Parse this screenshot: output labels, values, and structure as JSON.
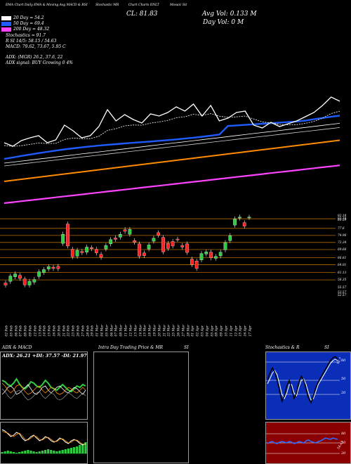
{
  "header": {
    "top_line": [
      "EMA Chart Daily",
      "EMA & Moving Avg",
      "MACD & RSI",
      "Stochastic",
      "MR",
      "Chart",
      "Charts ENLT",
      "Mosaic",
      "Sit"
    ],
    "left_stats": [
      "20  Day = 54.2",
      "50  Day = 69.4",
      "200  Day = 48.32",
      "Stochastics = 91.7",
      "R          SI 14/5: 58.15 / 54.63",
      "MACD: 79.62, 73.67, 5.95 C",
      "ADX:                    (MGR) 26.2,  37.6,   22",
      "ADX  signal:                         BUY Growing 0 4%"
    ],
    "cl_label": "CL: 81.83",
    "avg_vol": "Avg Vol: 0.133  M",
    "day_vol": "Day Vol: 0   M",
    "colors": {
      "ema20": "#ffffff",
      "ema50": "#1e5cff",
      "ema100": "#ffffff",
      "ema200": "#ff8c00",
      "ema_long": "#ff44ff"
    }
  },
  "price_axis": [
    "82.18",
    "81.18",
    "80.59",
    "77.6",
    "74.96",
    "72.34",
    "69.66",
    "66.61",
    "64.01",
    "61.13",
    "58.35",
    "55.57",
    "53.57",
    "52.57"
  ],
  "date_axis": [
    "02 Feb",
    "05 Feb",
    "06 Feb",
    "07 Feb",
    "08 Feb",
    "09 Feb",
    "12 Feb",
    "13 Feb",
    "14 Feb",
    "15 Feb",
    "16 Feb",
    "20 Feb",
    "21 Feb",
    "22 Feb",
    "23 Feb",
    "26 Feb",
    "27 Feb",
    "28 Feb",
    "29 Feb",
    "01 Mar",
    "04 Mar",
    "05 Mar",
    "06 Mar",
    "07 Mar",
    "08 Mar",
    "11 Mar",
    "12 Mar",
    "13 Mar",
    "14 Mar",
    "15 Mar",
    "18 Mar",
    "19 Mar",
    "20 Mar",
    "21 Mar",
    "22 Mar",
    "25 Mar",
    "26 Mar",
    "27 Mar",
    "28 Mar",
    "01 Apr",
    "02 Apr",
    "03 Apr",
    "04 Apr",
    "05 Apr",
    "08 Apr",
    "09 Apr",
    "10 Apr",
    "11 Apr",
    "12 Apr",
    "15 Apr",
    "16 Apr",
    "17 Apr"
  ],
  "panels": {
    "adx_title": "ADX  & MACD",
    "intra_title": "Intra Day Trading Price  & MR",
    "intra_si": "SI",
    "stoch_title": "Stochastics & R",
    "stoch_si": "SI",
    "adx_readout": "ADX: 26.21  +DI: 37.57  -DI: 21.97",
    "stoch_levels": [
      "80",
      "50",
      "20"
    ],
    "rsi_levels": [
      "80",
      "50",
      "20"
    ],
    "stoch_value": "91.7",
    "rsi_value": "54.63"
  },
  "chart_data": {
    "type": "line",
    "x": [
      "02 Feb",
      "05 Feb",
      "06 Feb",
      "07 Feb",
      "08 Feb",
      "09 Feb",
      "12 Feb",
      "13 Feb",
      "14 Feb",
      "15 Feb",
      "16 Feb",
      "20 Feb",
      "21 Feb",
      "22 Feb",
      "23 Feb",
      "26 Feb",
      "27 Feb",
      "28 Feb",
      "29 Feb",
      "01 Mar",
      "04 Mar",
      "05 Mar",
      "06 Mar",
      "07 Mar",
      "08 Mar",
      "11 Mar",
      "12 Mar",
      "13 Mar",
      "14 Mar",
      "15 Mar",
      "18 Mar",
      "19 Mar",
      "20 Mar",
      "21 Mar",
      "22 Mar",
      "25 Mar",
      "26 Mar",
      "27 Mar",
      "28 Mar",
      "01 Apr",
      "02 Apr",
      "03 Apr",
      "04 Apr",
      "05 Apr",
      "08 Apr",
      "09 Apr",
      "10 Apr",
      "11 Apr",
      "12 Apr",
      "15 Apr",
      "16 Apr",
      "17 Apr"
    ],
    "candles": [
      {
        "o": 57.2,
        "c": 56.4
      },
      {
        "o": 57.8,
        "c": 59.8
      },
      {
        "o": 59.5,
        "c": 60.6
      },
      {
        "o": 60.0,
        "c": 58.9
      },
      {
        "o": 58.7,
        "c": 56.5
      },
      {
        "o": 56.4,
        "c": 57.8
      },
      {
        "o": 57.5,
        "c": 58.5
      },
      {
        "o": 59.6,
        "c": 61.4
      },
      {
        "o": 61.1,
        "c": 62.2
      },
      {
        "o": 62.4,
        "c": 63.3
      },
      {
        "o": 63.1,
        "c": 62.6
      },
      {
        "o": 63.4,
        "c": 62.5
      },
      {
        "o": 72.0,
        "c": 75.4
      },
      {
        "o": 79.2,
        "c": 71.0
      },
      {
        "o": 69.8,
        "c": 67.0
      },
      {
        "o": 67.2,
        "c": 69.4
      },
      {
        "o": 69.0,
        "c": 68.5
      },
      {
        "o": 68.7,
        "c": 70.6
      },
      {
        "o": 70.4,
        "c": 70.0
      },
      {
        "o": 69.8,
        "c": 68.4
      },
      {
        "o": 67.9,
        "c": 66.8
      },
      {
        "o": 69.9,
        "c": 71.2
      },
      {
        "o": 71.8,
        "c": 73.4
      },
      {
        "o": 74.0,
        "c": 73.5
      },
      {
        "o": 74.3,
        "c": 75.4
      },
      {
        "o": 77.1,
        "c": 76.5
      },
      {
        "o": 75.4,
        "c": 77.2
      },
      {
        "o": 73.0,
        "c": 72.4
      },
      {
        "o": 71.8,
        "c": 67.2
      },
      {
        "o": 68.4,
        "c": 67.4
      },
      {
        "o": 69.9,
        "c": 71.4
      },
      {
        "o": 72.8,
        "c": 73.9
      },
      {
        "o": 76.0,
        "c": 75.0
      },
      {
        "o": 74.2,
        "c": 68.8
      },
      {
        "o": 72.0,
        "c": 70.1
      },
      {
        "o": 72.7,
        "c": 71.0
      },
      {
        "o": 73.6,
        "c": 73.5
      },
      {
        "o": 71.2,
        "c": 70.6
      },
      {
        "o": 71.8,
        "c": 68.6
      },
      {
        "o": 66.1,
        "c": 64.1
      },
      {
        "o": 65.4,
        "c": 62.6
      },
      {
        "o": 65.8,
        "c": 68.2
      },
      {
        "o": 68.0,
        "c": 68.8
      },
      {
        "o": 68.7,
        "c": 66.6
      },
      {
        "o": 66.4,
        "c": 67.1
      },
      {
        "o": 67.3,
        "c": 68.7
      },
      {
        "o": 69.6,
        "c": 72.3
      },
      {
        "o": 73.0,
        "c": 74.9
      },
      {
        "o": 78.8,
        "c": 81.1
      },
      {
        "o": 81.4,
        "c": 81.8
      },
      {
        "o": 79.7,
        "c": 78.4
      },
      {
        "o": 81.7,
        "c": 81.8
      }
    ]
  }
}
